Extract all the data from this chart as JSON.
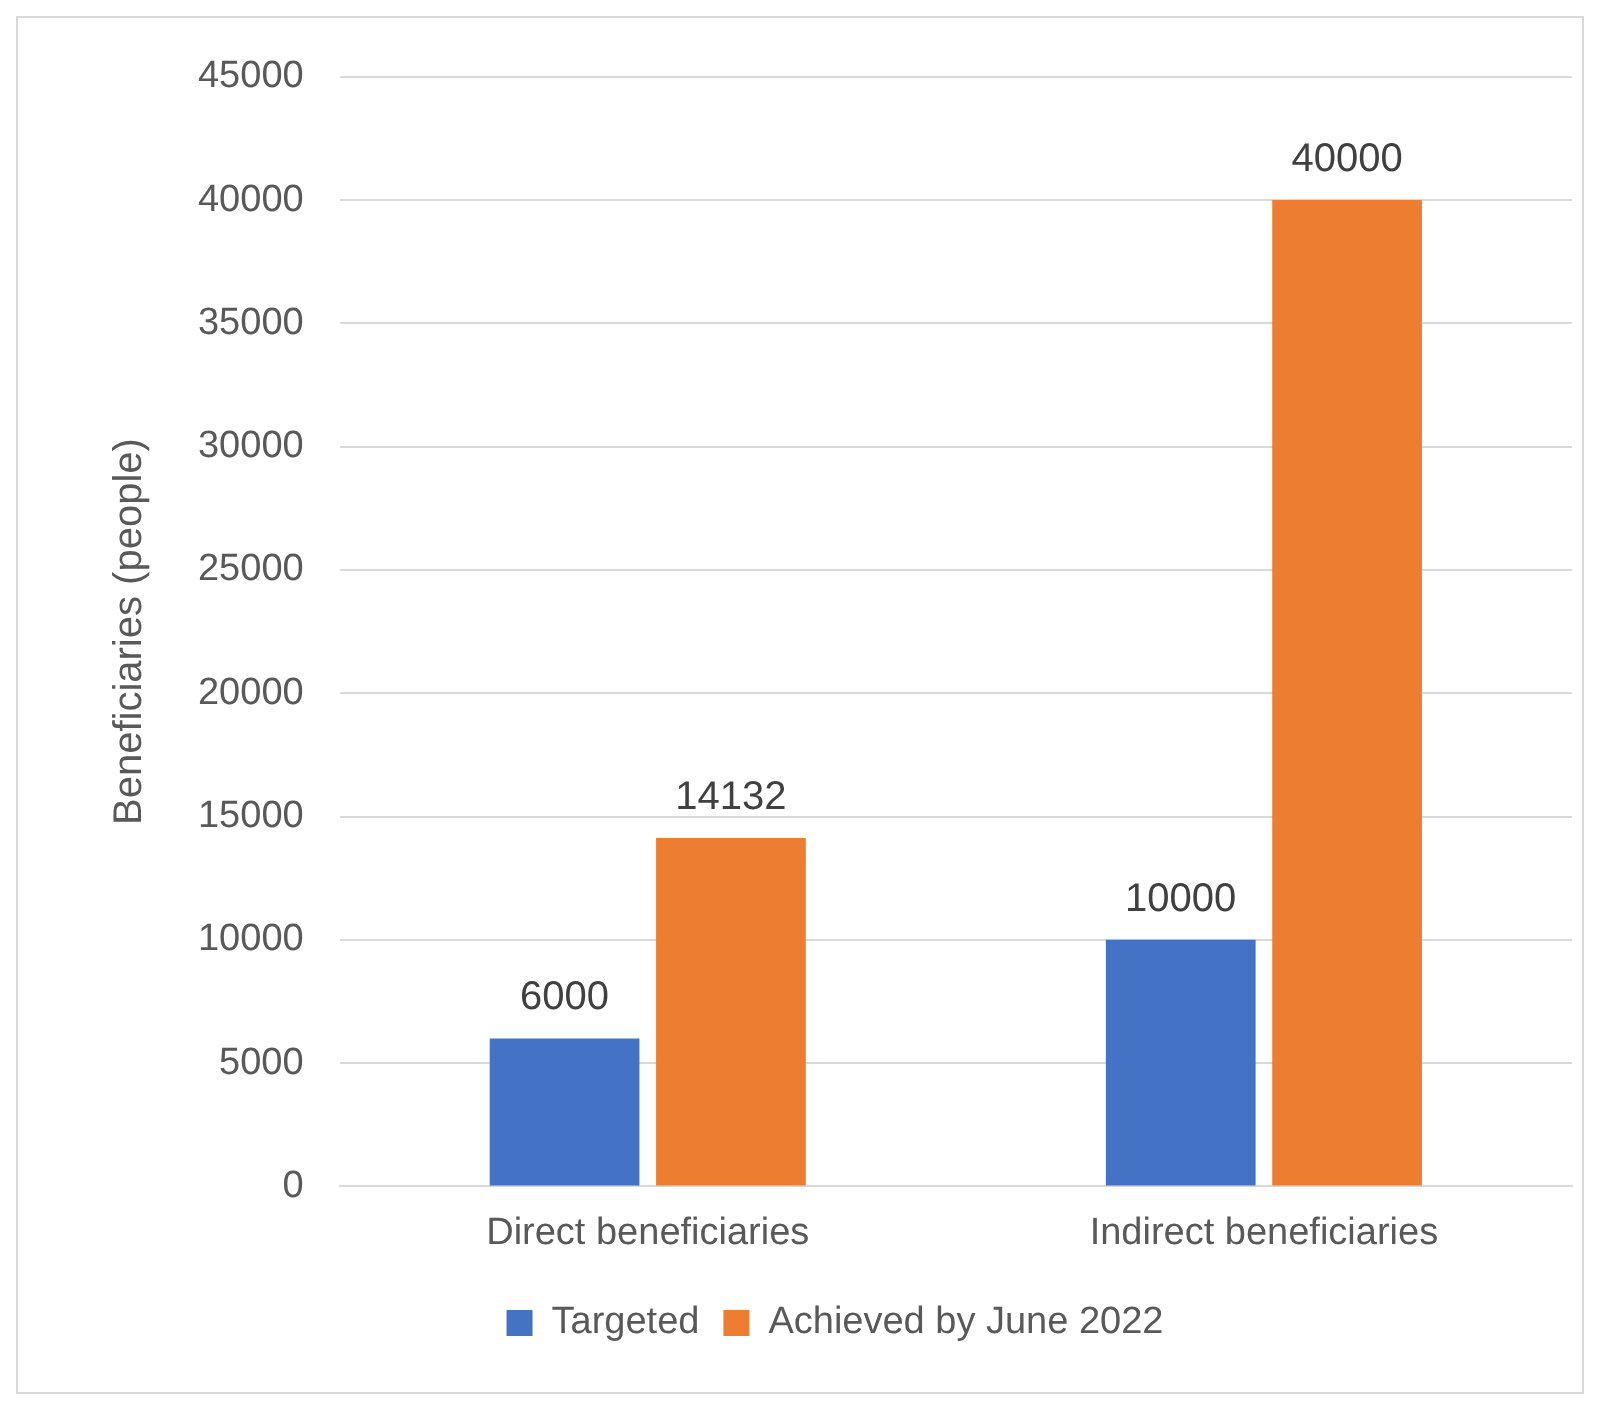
{
  "chart_data": {
    "type": "bar",
    "ylabel": "Beneficiaries (people)",
    "categories": [
      "Direct beneficiaries",
      "Indirect beneficiaries"
    ],
    "series": [
      {
        "name": "Targeted",
        "color": "#4472c4",
        "values": [
          6000,
          10000
        ]
      },
      {
        "name": "Achieved by June 2022",
        "color": "#ed7d31",
        "values": [
          14132,
          40000
        ]
      }
    ],
    "ylim": [
      0,
      45000
    ],
    "yticks": [
      0,
      5000,
      10000,
      15000,
      20000,
      25000,
      30000,
      35000,
      40000,
      45000
    ],
    "grid": "y",
    "legend": "bottom",
    "data_labels": true
  }
}
